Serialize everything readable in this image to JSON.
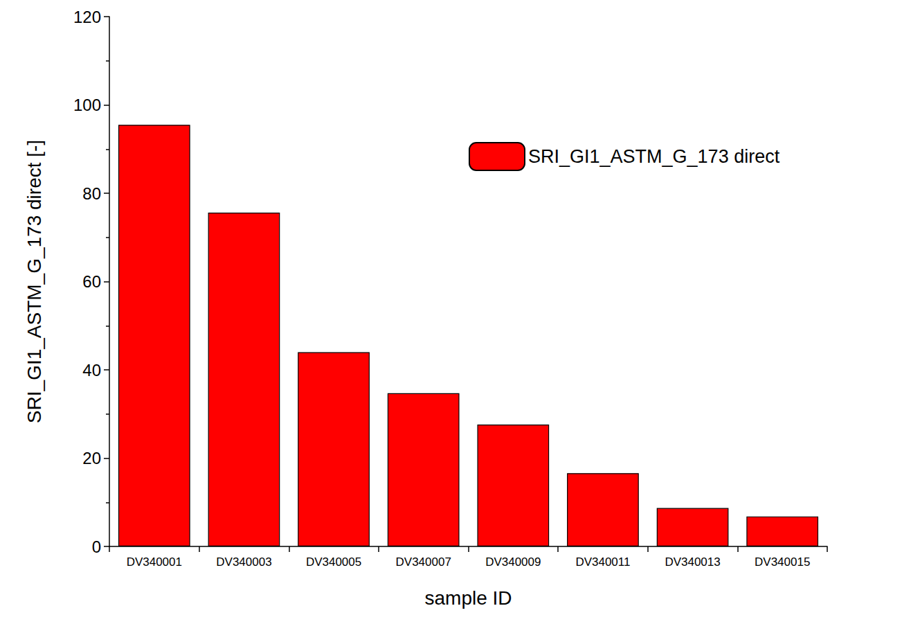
{
  "chart_data": {
    "type": "bar",
    "x_label": "sample ID",
    "y_label": "SRI_GI1_ASTM_G_173 direct [-]",
    "categories": [
      "DV340001",
      "DV340003",
      "DV340005",
      "DV340007",
      "DV340009",
      "DV340011",
      "DV340013",
      "DV340015"
    ],
    "series": [
      {
        "name": "SRI_GI1_ASTM_G_173 direct",
        "color": "#ff0000",
        "values": [
          95.5,
          75.6,
          44.0,
          34.7,
          27.6,
          16.6,
          8.7,
          6.8
        ]
      }
    ],
    "ylim": [
      0,
      120
    ],
    "yticks": [
      0,
      20,
      40,
      60,
      80,
      100,
      120
    ],
    "grid": false,
    "legend": "right"
  }
}
